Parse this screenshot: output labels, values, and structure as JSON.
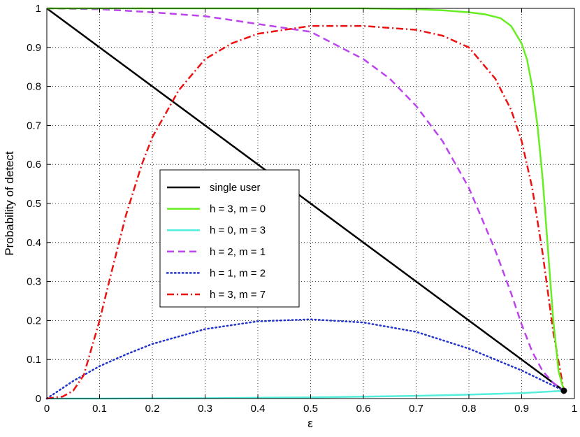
{
  "chart_data": {
    "type": "line",
    "title": "",
    "xlabel": "ε",
    "ylabel": "Probability of detect",
    "xlim": [
      0,
      1
    ],
    "ylim": [
      0,
      1
    ],
    "xticks": [
      "0",
      "0.1",
      "0.2",
      "0.3",
      "0.4",
      "0.5",
      "0.6",
      "0.7",
      "0.8",
      "0.9",
      "1"
    ],
    "yticks": [
      "0",
      "0.1",
      "0.2",
      "0.3",
      "0.4",
      "0.5",
      "0.6",
      "0.7",
      "0.8",
      "0.9",
      "1"
    ],
    "grid": true,
    "legend_position": "center-left",
    "series": [
      {
        "name": "single user",
        "color": "#000000",
        "style": "solid",
        "x": [
          0,
          0.98
        ],
        "y": [
          1,
          0.02
        ]
      },
      {
        "name": "h = 3, m = 0",
        "color": "#66ee22",
        "style": "solid",
        "x": [
          0,
          0.1,
          0.2,
          0.3,
          0.4,
          0.5,
          0.6,
          0.7,
          0.75,
          0.8,
          0.83,
          0.86,
          0.88,
          0.9,
          0.91,
          0.92,
          0.93,
          0.94,
          0.95,
          0.96,
          0.97,
          0.98
        ],
        "y": [
          1,
          1,
          1,
          1,
          1,
          1,
          1,
          0.998,
          0.995,
          0.99,
          0.985,
          0.975,
          0.955,
          0.91,
          0.87,
          0.8,
          0.7,
          0.56,
          0.38,
          0.2,
          0.07,
          0.02
        ]
      },
      {
        "name": "h = 0, m = 3",
        "color": "#55eedd",
        "style": "solid",
        "x": [
          0,
          0.1,
          0.2,
          0.3,
          0.4,
          0.5,
          0.6,
          0.7,
          0.8,
          0.9,
          0.98
        ],
        "y": [
          0,
          0,
          0.0005,
          0.001,
          0.002,
          0.003,
          0.005,
          0.007,
          0.01,
          0.014,
          0.02
        ]
      },
      {
        "name": "h = 2, m = 1",
        "color": "#bb44ee",
        "style": "dashed",
        "x": [
          0,
          0.1,
          0.2,
          0.3,
          0.4,
          0.5,
          0.6,
          0.65,
          0.7,
          0.75,
          0.8,
          0.85,
          0.88,
          0.9,
          0.92,
          0.94,
          0.96,
          0.98
        ],
        "y": [
          1,
          0.998,
          0.99,
          0.98,
          0.96,
          0.94,
          0.87,
          0.82,
          0.75,
          0.66,
          0.54,
          0.38,
          0.27,
          0.19,
          0.12,
          0.07,
          0.04,
          0.02
        ]
      },
      {
        "name": "h = 1, m = 2",
        "color": "#2233cc",
        "style": "dotted",
        "x": [
          0,
          0.05,
          0.1,
          0.15,
          0.2,
          0.3,
          0.4,
          0.5,
          0.6,
          0.7,
          0.8,
          0.9,
          0.98
        ],
        "y": [
          0,
          0.045,
          0.083,
          0.113,
          0.14,
          0.178,
          0.198,
          0.203,
          0.195,
          0.171,
          0.128,
          0.072,
          0.02
        ]
      },
      {
        "name": "h = 3, m = 7",
        "color": "#ee1111",
        "style": "dashdot",
        "x": [
          0,
          0.03,
          0.05,
          0.07,
          0.1,
          0.12,
          0.15,
          0.18,
          0.2,
          0.25,
          0.3,
          0.35,
          0.4,
          0.5,
          0.6,
          0.7,
          0.75,
          0.8,
          0.85,
          0.88,
          0.9,
          0.92,
          0.94,
          0.96,
          0.98
        ],
        "y": [
          0,
          0.005,
          0.02,
          0.06,
          0.2,
          0.31,
          0.47,
          0.6,
          0.67,
          0.79,
          0.87,
          0.91,
          0.935,
          0.955,
          0.955,
          0.945,
          0.93,
          0.9,
          0.82,
          0.74,
          0.66,
          0.54,
          0.37,
          0.17,
          0.02
        ]
      }
    ],
    "marker": {
      "x": 0.98,
      "y": 0.02,
      "color": "#000000"
    }
  }
}
